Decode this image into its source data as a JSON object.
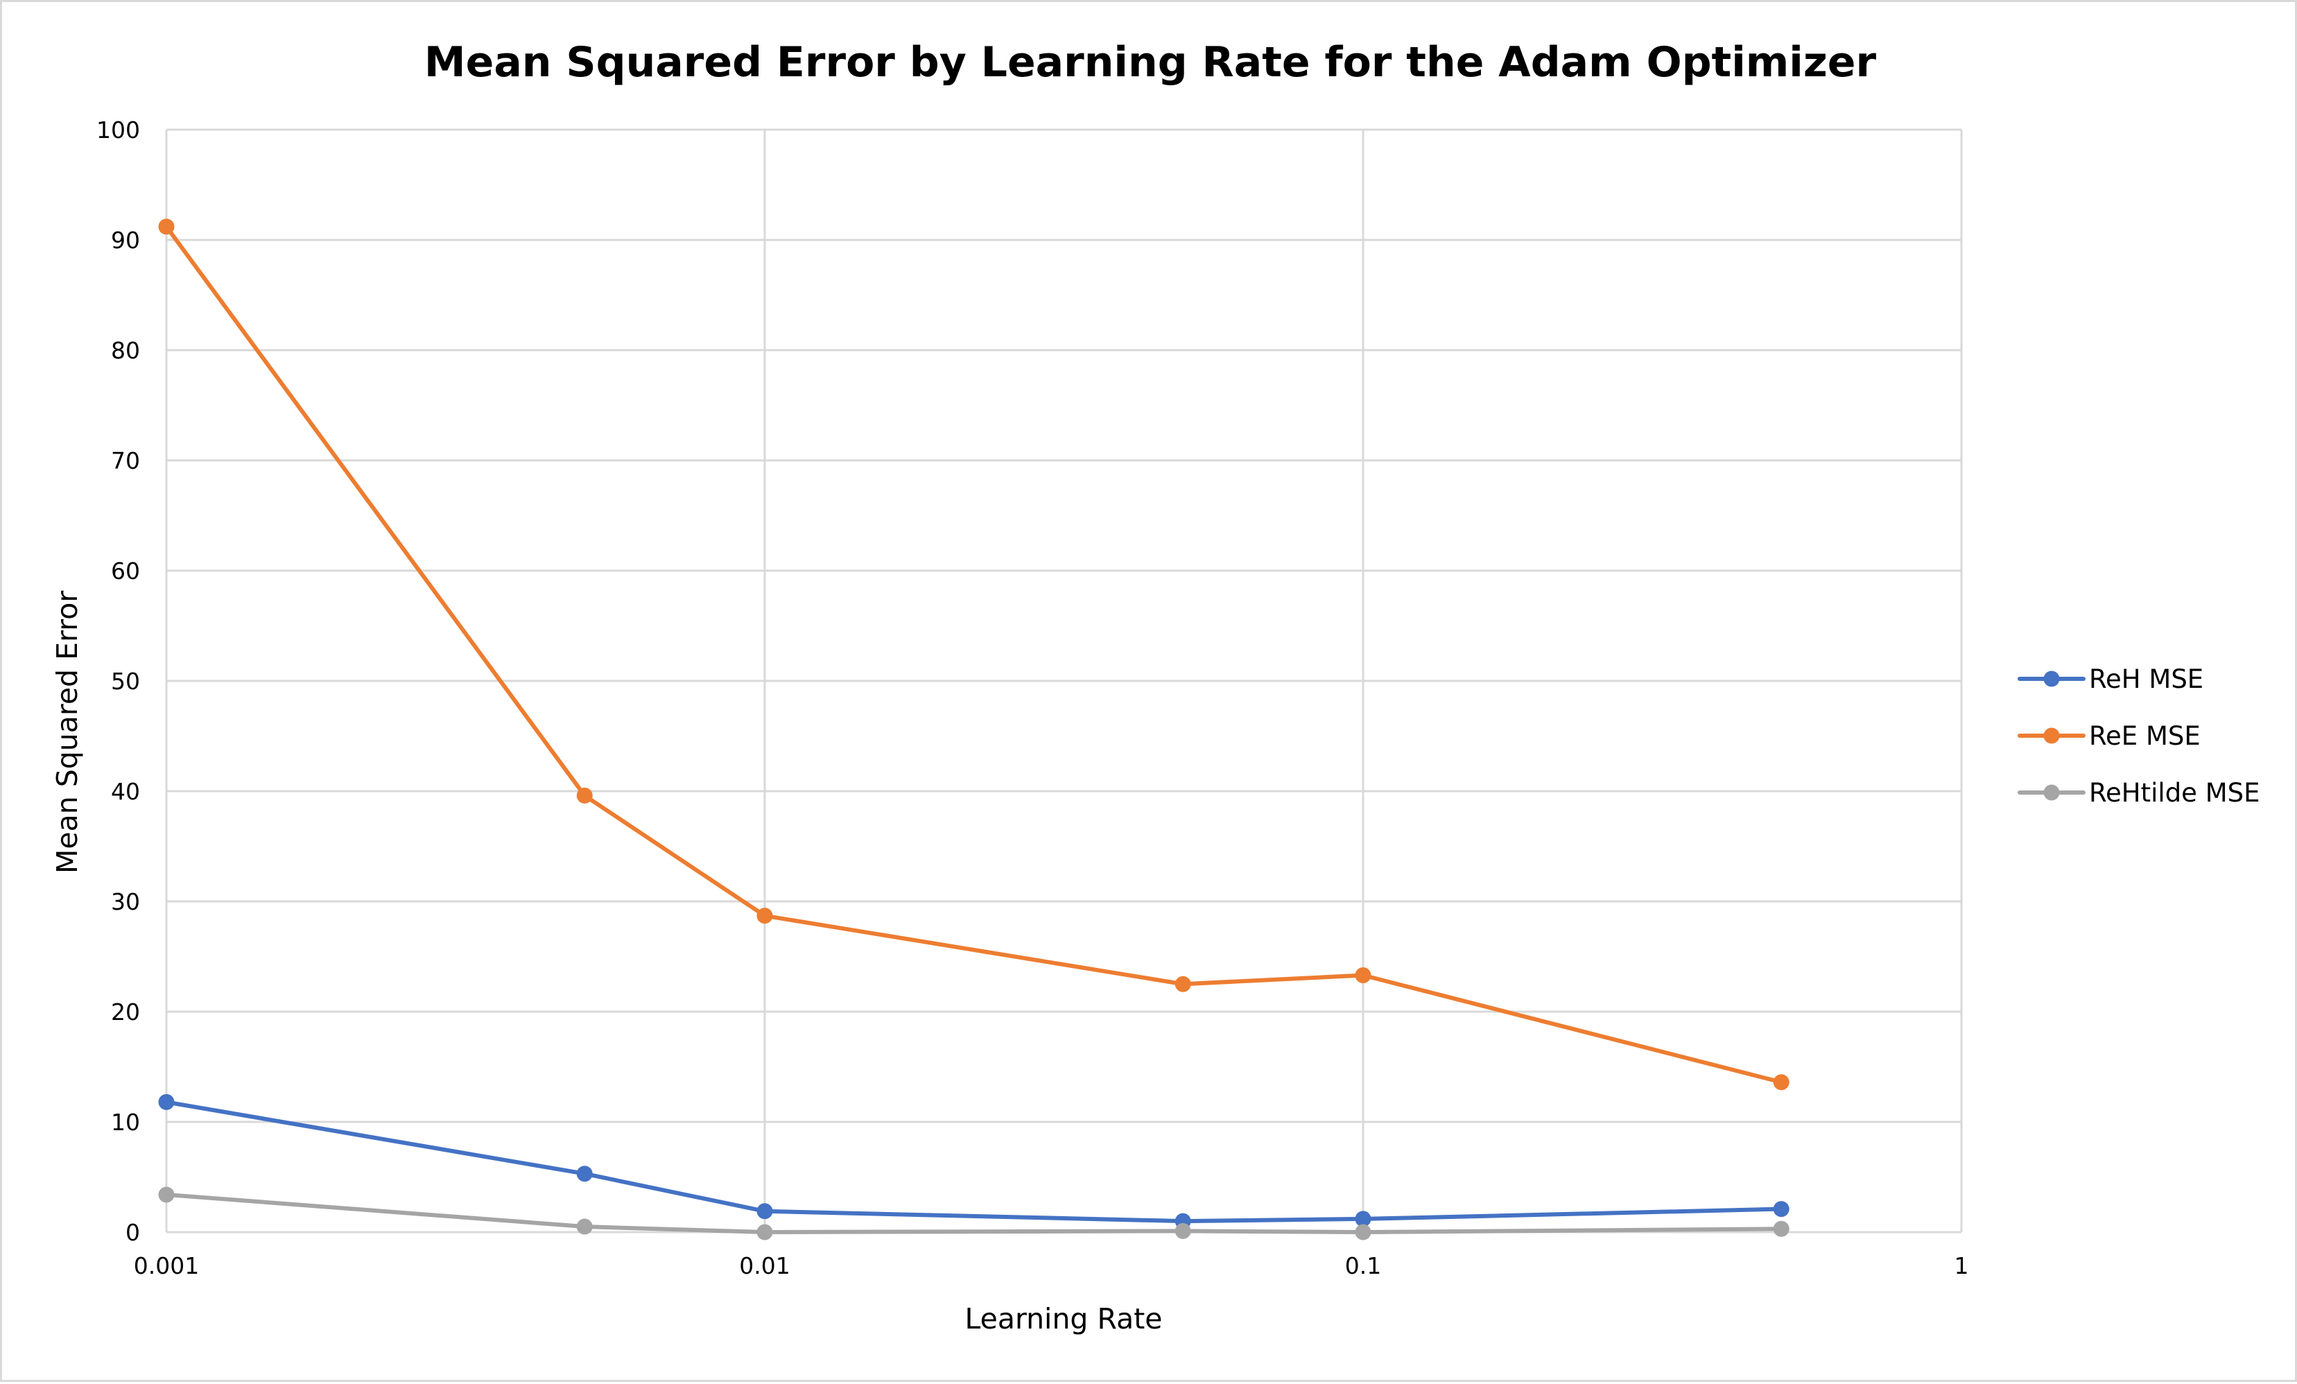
{
  "chart_data": {
    "type": "line",
    "title": "Mean Squared Error by Learning Rate for the Adam Optimizer",
    "xlabel": "Learning Rate",
    "ylabel": "Mean Squared Error",
    "x_scale": "log",
    "xlim": [
      0.001,
      1
    ],
    "ylim": [
      0,
      100
    ],
    "x_ticks": [
      0.001,
      0.01,
      0.1,
      1
    ],
    "x_tick_labels": [
      "0.001",
      "0.01",
      "0.1",
      "1"
    ],
    "y_ticks": [
      0,
      10,
      20,
      30,
      40,
      50,
      60,
      70,
      80,
      90,
      100
    ],
    "y_tick_labels": [
      "0",
      "10",
      "20",
      "30",
      "40",
      "50",
      "60",
      "70",
      "80",
      "90",
      "100"
    ],
    "grid": true,
    "legend_position": "right",
    "x": [
      0.001,
      0.005,
      0.01,
      0.05,
      0.1,
      0.5
    ],
    "series": [
      {
        "name": "ReH MSE",
        "color": "#4472c4",
        "values": [
          11.8,
          5.3,
          1.9,
          1.0,
          1.2,
          2.1
        ]
      },
      {
        "name": "ReE MSE",
        "color": "#ed7d31",
        "values": [
          91.2,
          39.6,
          28.7,
          22.5,
          23.3,
          13.6
        ]
      },
      {
        "name": "ReHtilde MSE",
        "color": "#a5a5a5",
        "values": [
          3.4,
          0.5,
          0.0,
          0.1,
          0.0,
          0.3
        ]
      }
    ]
  }
}
